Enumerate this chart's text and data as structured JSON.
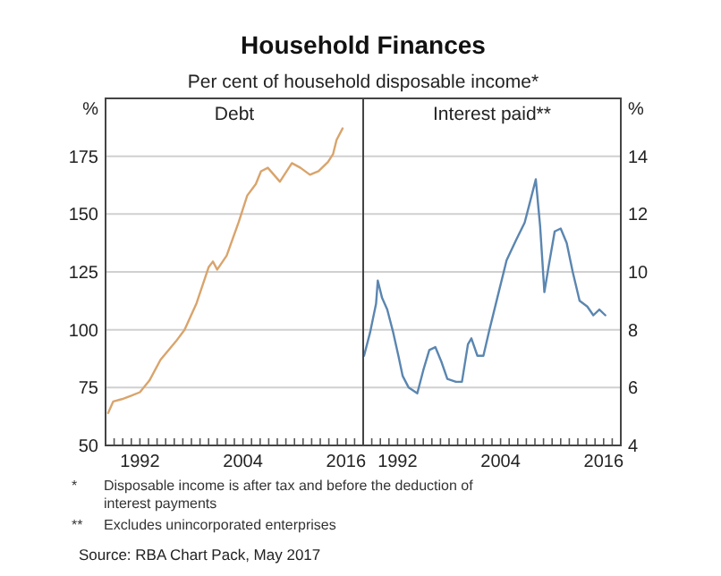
{
  "chart_data": [
    {
      "type": "line",
      "title": "Household Finances",
      "subtitle": "Per cent of household disposable income*",
      "ylabel": "%",
      "xlim": [
        1988,
        2018
      ],
      "ylim": [
        50,
        200
      ],
      "yticks": [
        50,
        75,
        100,
        125,
        150,
        175
      ],
      "xticks": [
        1992,
        2004,
        2016,
        {
          "value": 1989,
          "label": null
        },
        {
          "value": 1990,
          "label": null
        },
        {
          "value": 1991,
          "label": null
        },
        {
          "value": 1993,
          "label": null
        },
        {
          "value": 1994,
          "label": null
        },
        {
          "value": 1995,
          "label": null
        },
        {
          "value": 1996,
          "label": null
        },
        {
          "value": 1997,
          "label": null
        },
        {
          "value": 1998,
          "label": null
        },
        {
          "value": 1999,
          "label": null
        },
        {
          "value": 2000,
          "label": null
        },
        {
          "value": 2001,
          "label": null
        },
        {
          "value": 2002,
          "label": null
        },
        {
          "value": 2003,
          "label": null
        },
        {
          "value": 2005,
          "label": null
        },
        {
          "value": 2006,
          "label": null
        },
        {
          "value": 2007,
          "label": null
        },
        {
          "value": 2008,
          "label": null
        },
        {
          "value": 2009,
          "label": null
        },
        {
          "value": 2010,
          "label": null
        },
        {
          "value": 2011,
          "label": null
        },
        {
          "value": 2012,
          "label": null
        },
        {
          "value": 2013,
          "label": null
        },
        {
          "value": 2014,
          "label": null
        },
        {
          "value": 2015,
          "label": null
        },
        {
          "value": 2017,
          "label": null
        }
      ],
      "grid": "y",
      "series": [
        {
          "name": "Debt",
          "color": "#d9a46c",
          "x": [
            1988.3,
            1988.9,
            1989.9,
            1991.0,
            1992.0,
            1993.1,
            1994.4,
            1996.2,
            1997.2,
            1998.6,
            2000.0,
            2000.5,
            2001.0,
            2002.1,
            2003.5,
            2004.5,
            2005.5,
            2006.1,
            2006.9,
            2007.6,
            2008.3,
            2009.7,
            2010.7,
            2011.8,
            2012.8,
            2013.9,
            2014.5,
            2014.9,
            2015.6
          ],
          "values": [
            64,
            69,
            70,
            71.5,
            73,
            78,
            87,
            95,
            100,
            111.5,
            127,
            129.5,
            126,
            132,
            146.5,
            158,
            163,
            168.5,
            170,
            167,
            164,
            172,
            170,
            167,
            168.5,
            172.5,
            176,
            182,
            187
          ]
        }
      ]
    },
    {
      "type": "line",
      "ylabel": "%",
      "xlim": [
        1988,
        2018
      ],
      "ylim": [
        4,
        16
      ],
      "yticks": [
        4,
        6,
        8,
        10,
        12,
        14
      ],
      "xticks": [
        1992,
        2004,
        2016,
        {
          "value": 1989,
          "label": null
        },
        {
          "value": 1990,
          "label": null
        },
        {
          "value": 1991,
          "label": null
        },
        {
          "value": 1993,
          "label": null
        },
        {
          "value": 1994,
          "label": null
        },
        {
          "value": 1995,
          "label": null
        },
        {
          "value": 1996,
          "label": null
        },
        {
          "value": 1997,
          "label": null
        },
        {
          "value": 1998,
          "label": null
        },
        {
          "value": 1999,
          "label": null
        },
        {
          "value": 2000,
          "label": null
        },
        {
          "value": 2001,
          "label": null
        },
        {
          "value": 2002,
          "label": null
        },
        {
          "value": 2003,
          "label": null
        },
        {
          "value": 2005,
          "label": null
        },
        {
          "value": 2006,
          "label": null
        },
        {
          "value": 2007,
          "label": null
        },
        {
          "value": 2008,
          "label": null
        },
        {
          "value": 2009,
          "label": null
        },
        {
          "value": 2010,
          "label": null
        },
        {
          "value": 2011,
          "label": null
        },
        {
          "value": 2012,
          "label": null
        },
        {
          "value": 2013,
          "label": null
        },
        {
          "value": 2014,
          "label": null
        },
        {
          "value": 2015,
          "label": null
        },
        {
          "value": 2017,
          "label": null
        }
      ],
      "grid": "y",
      "annotations": [
        "*   Disposable income is after tax and before the deduction of interest payments",
        "**  Excludes unincorporated enterprises",
        "Source: RBA Chart Pack, May 2017"
      ],
      "series": [
        {
          "name": "Interest paid**",
          "color": "#5b86b0",
          "x": [
            1988.1,
            1988.8,
            1989.5,
            1989.7,
            1990.2,
            1990.8,
            1991.5,
            1992.1,
            1992.6,
            1993.3,
            1994.3,
            1995.0,
            1995.7,
            1996.4,
            1997.1,
            1997.8,
            1998.8,
            1999.5,
            2000.2,
            2000.6,
            2001.3,
            2002.0,
            2002.7,
            2003.7,
            2004.7,
            2005.8,
            2006.8,
            2007.5,
            2008.1,
            2008.6,
            2009.1,
            2009.6,
            2010.3,
            2011.0,
            2011.7,
            2012.4,
            2013.2,
            2014.1,
            2014.8,
            2015.5,
            2016.2
          ],
          "values": [
            7.1,
            7.9,
            8.9,
            9.7,
            9.1,
            8.7,
            7.9,
            7.1,
            6.4,
            6.0,
            5.8,
            6.6,
            7.3,
            7.4,
            6.9,
            6.3,
            6.2,
            6.2,
            7.5,
            7.7,
            7.1,
            7.1,
            8.0,
            9.2,
            10.4,
            11.1,
            11.7,
            12.5,
            13.2,
            11.6,
            9.3,
            10.2,
            11.4,
            11.5,
            11.0,
            10.0,
            9.0,
            8.8,
            8.5,
            8.7,
            8.5
          ]
        }
      ]
    }
  ]
}
